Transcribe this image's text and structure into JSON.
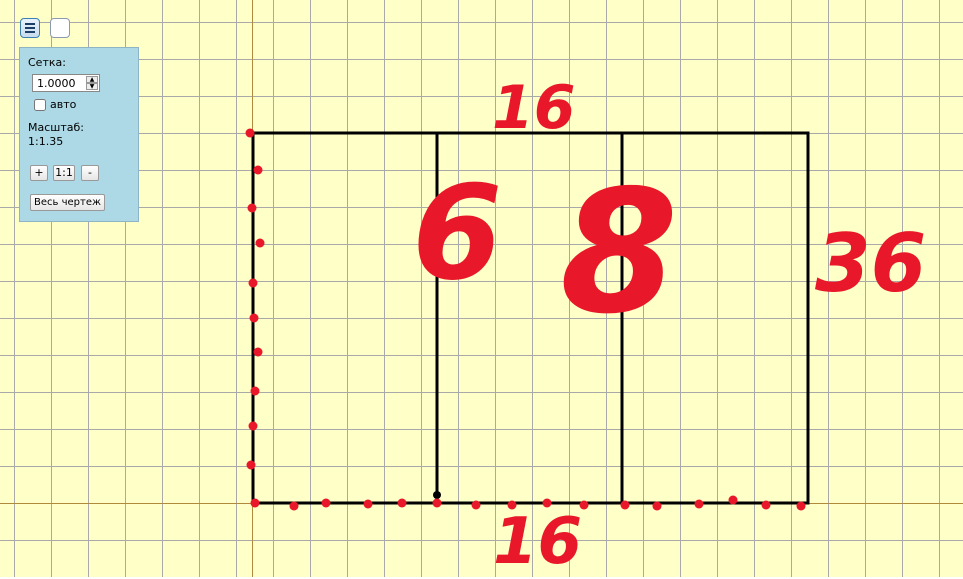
{
  "panel": {
    "grid_label": "Сетка:",
    "grid_value": "1.0000",
    "auto_label": "авто",
    "auto_checked": false,
    "scale_label": "Масштаб:",
    "scale_value": "1:1.35",
    "zoom_in_label": "+",
    "zoom_reset_label": "1:1",
    "zoom_out_label": "-",
    "fit_label": "Весь чертеж"
  },
  "annotations": {
    "top_width": "16",
    "bottom_width": "16",
    "height": "36",
    "left_section": "6",
    "middle_section": "8"
  },
  "colors": {
    "background": "#ffffc8",
    "grid": "#a9a9a9",
    "axis": "#b08a3c",
    "shape": "#000000",
    "annotation": "#e8182a",
    "panel": "#add8e6"
  }
}
